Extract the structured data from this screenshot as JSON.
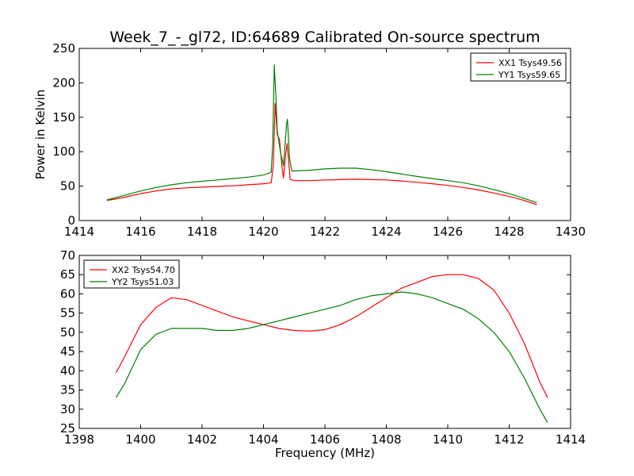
{
  "figure": {
    "title": "Week_7_-_gl72, ID:64689 Calibrated On-source spectrum"
  },
  "chart_data": [
    {
      "type": "line",
      "title": "Week_7_-_gl72, ID:64689 Calibrated On-source spectrum",
      "xlabel": "",
      "ylabel": "Power in Kelvin",
      "xlim": [
        1414,
        1430
      ],
      "ylim": [
        0,
        250
      ],
      "xticks": [
        1414,
        1416,
        1418,
        1420,
        1422,
        1424,
        1426,
        1428,
        1430
      ],
      "yticks": [
        0,
        50,
        100,
        150,
        200,
        250
      ],
      "grid": false,
      "legend_position": "top-right",
      "series": [
        {
          "name": "XX1 Tsys49.56",
          "color": "#ff0000",
          "points": [
            [
              1414.9,
              29
            ],
            [
              1415.5,
              34
            ],
            [
              1416.0,
              39
            ],
            [
              1416.5,
              43
            ],
            [
              1417.0,
              46
            ],
            [
              1417.5,
              47.5
            ],
            [
              1418.0,
              48.5
            ],
            [
              1418.5,
              49.5
            ],
            [
              1419.0,
              50.5
            ],
            [
              1419.5,
              52
            ],
            [
              1420.0,
              53.5
            ],
            [
              1420.25,
              55
            ],
            [
              1420.32,
              80
            ],
            [
              1420.38,
              170
            ],
            [
              1420.45,
              125
            ],
            [
              1420.52,
              118
            ],
            [
              1420.6,
              80
            ],
            [
              1420.65,
              62
            ],
            [
              1420.72,
              95
            ],
            [
              1420.77,
              112
            ],
            [
              1420.82,
              85
            ],
            [
              1420.87,
              60
            ],
            [
              1421.0,
              58
            ],
            [
              1421.5,
              58
            ],
            [
              1422.0,
              59
            ],
            [
              1422.5,
              59.5
            ],
            [
              1423.0,
              60
            ],
            [
              1423.5,
              59.5
            ],
            [
              1424.0,
              59
            ],
            [
              1424.5,
              57.5
            ],
            [
              1425.0,
              55.5
            ],
            [
              1425.5,
              53.5
            ],
            [
              1426.0,
              51
            ],
            [
              1426.5,
              48
            ],
            [
              1427.0,
              44.5
            ],
            [
              1427.5,
              40
            ],
            [
              1428.0,
              35
            ],
            [
              1428.5,
              29
            ],
            [
              1428.9,
              23
            ]
          ]
        },
        {
          "name": "YY1 Tsys59.65",
          "color": "#008000",
          "points": [
            [
              1414.9,
              30
            ],
            [
              1415.5,
              37
            ],
            [
              1416.0,
              43
            ],
            [
              1416.5,
              48
            ],
            [
              1417.0,
              52
            ],
            [
              1417.5,
              55
            ],
            [
              1418.0,
              57
            ],
            [
              1418.5,
              59
            ],
            [
              1419.0,
              61
            ],
            [
              1419.5,
              63
            ],
            [
              1420.0,
              66
            ],
            [
              1420.25,
              70
            ],
            [
              1420.3,
              110
            ],
            [
              1420.35,
              226
            ],
            [
              1420.4,
              185
            ],
            [
              1420.45,
              130
            ],
            [
              1420.55,
              100
            ],
            [
              1420.65,
              80
            ],
            [
              1420.75,
              140
            ],
            [
              1420.78,
              147
            ],
            [
              1420.85,
              90
            ],
            [
              1420.92,
              72
            ],
            [
              1421.0,
              72
            ],
            [
              1421.5,
              73
            ],
            [
              1422.0,
              75
            ],
            [
              1422.5,
              76
            ],
            [
              1423.0,
              76
            ],
            [
              1423.5,
              74
            ],
            [
              1424.0,
              71
            ],
            [
              1424.5,
              67.5
            ],
            [
              1425.0,
              64
            ],
            [
              1425.5,
              61
            ],
            [
              1426.0,
              58
            ],
            [
              1426.5,
              55
            ],
            [
              1427.0,
              50.5
            ],
            [
              1427.5,
              45
            ],
            [
              1428.0,
              39
            ],
            [
              1428.5,
              32
            ],
            [
              1428.9,
              26
            ]
          ]
        }
      ]
    },
    {
      "type": "line",
      "title": "",
      "xlabel": "Frequency (MHz)",
      "ylabel": "",
      "xlim": [
        1398,
        1414
      ],
      "ylim": [
        25,
        70
      ],
      "xticks": [
        1398,
        1400,
        1402,
        1404,
        1406,
        1408,
        1410,
        1412,
        1414
      ],
      "yticks": [
        25,
        30,
        35,
        40,
        45,
        50,
        55,
        60,
        65,
        70
      ],
      "grid": false,
      "legend_position": "top-left",
      "series": [
        {
          "name": "XX2 Tsys54.70",
          "color": "#ff0000",
          "points": [
            [
              1399.2,
              39.5
            ],
            [
              1399.5,
              44
            ],
            [
              1400.0,
              52
            ],
            [
              1400.5,
              56.5
            ],
            [
              1401.0,
              59
            ],
            [
              1401.5,
              58.5
            ],
            [
              1402.0,
              57
            ],
            [
              1402.5,
              55.5
            ],
            [
              1403.0,
              54
            ],
            [
              1403.5,
              53
            ],
            [
              1404.0,
              52
            ],
            [
              1404.5,
              51
            ],
            [
              1405.0,
              50.5
            ],
            [
              1405.5,
              50.3
            ],
            [
              1406.0,
              50.7
            ],
            [
              1406.5,
              52
            ],
            [
              1407.0,
              54
            ],
            [
              1407.5,
              56.5
            ],
            [
              1408.0,
              59
            ],
            [
              1408.5,
              61.5
            ],
            [
              1409.0,
              63
            ],
            [
              1409.5,
              64.5
            ],
            [
              1410.0,
              65
            ],
            [
              1410.5,
              65
            ],
            [
              1411.0,
              64
            ],
            [
              1411.5,
              61
            ],
            [
              1412.0,
              55
            ],
            [
              1412.5,
              47
            ],
            [
              1413.0,
              37
            ],
            [
              1413.25,
              33
            ]
          ]
        },
        {
          "name": "YY2 Tsys51.03",
          "color": "#008000",
          "points": [
            [
              1399.2,
              33
            ],
            [
              1399.5,
              37
            ],
            [
              1400.0,
              45.5
            ],
            [
              1400.5,
              49.5
            ],
            [
              1401.0,
              51
            ],
            [
              1401.5,
              51
            ],
            [
              1402.0,
              51
            ],
            [
              1402.5,
              50.5
            ],
            [
              1403.0,
              50.5
            ],
            [
              1403.5,
              51
            ],
            [
              1404.0,
              52
            ],
            [
              1404.5,
              53
            ],
            [
              1405.0,
              54
            ],
            [
              1405.5,
              55
            ],
            [
              1406.0,
              56
            ],
            [
              1406.5,
              57
            ],
            [
              1407.0,
              58.5
            ],
            [
              1407.5,
              59.5
            ],
            [
              1408.0,
              60
            ],
            [
              1408.5,
              60.5
            ],
            [
              1409.0,
              60
            ],
            [
              1409.5,
              59
            ],
            [
              1410.0,
              57.5
            ],
            [
              1410.5,
              56
            ],
            [
              1411.0,
              53.5
            ],
            [
              1411.5,
              50
            ],
            [
              1412.0,
              45
            ],
            [
              1412.5,
              38
            ],
            [
              1413.0,
              30
            ],
            [
              1413.25,
              26.5
            ]
          ]
        }
      ]
    }
  ]
}
